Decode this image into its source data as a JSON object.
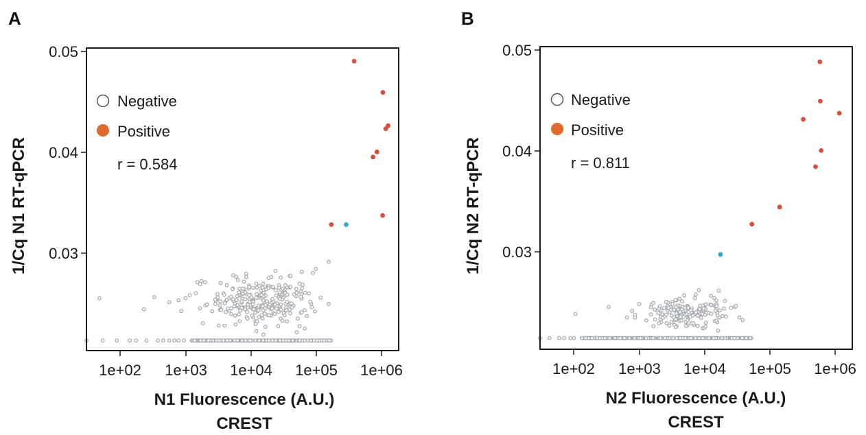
{
  "colors": {
    "negative": "#a6acb1",
    "positive_marker": "#e04a38",
    "legend_positive": "#e06a2a",
    "highlight": "#2aa8e0",
    "axis": "#1a1a1a"
  },
  "legend": {
    "negative_label": "Negative",
    "positive_label": "Positive"
  },
  "chart_data": [
    {
      "type": "scatter",
      "panel_label": "A",
      "xlabel": "N1 Fluorescence (A.U.)",
      "xlabel2": "CREST",
      "ylabel": "1/Cq N1 RT-qPCR",
      "x_scale": "log10",
      "xlim": [
        25,
        2000000
      ],
      "ylim": [
        0.0205,
        0.0505
      ],
      "x_ticks": [
        100,
        1000,
        10000,
        100000,
        1000000
      ],
      "x_tick_labels": [
        "1e+02",
        "1e+03",
        "1e+04",
        "1e+05",
        "1e+06"
      ],
      "y_ticks": [
        0.03,
        0.04,
        0.05
      ],
      "y_tick_labels": [
        "0.03",
        "0.04",
        "0.05"
      ],
      "annotation": "r = 0.584",
      "legend_position": "top-left",
      "series": [
        {
          "name": "Positive",
          "points": [
            [
              400000,
              0.0492
            ],
            [
              1130000,
              0.0461
            ],
            [
              1360000,
              0.0428
            ],
            [
              1250000,
              0.0425
            ],
            [
              910000,
              0.0402
            ],
            [
              790000,
              0.0397
            ],
            [
              1120000,
              0.0339
            ],
            [
              175000,
              0.033
            ]
          ]
        },
        {
          "name": "Highlight",
          "points": [
            [
              300000,
              0.033
            ]
          ]
        },
        {
          "name": "Negative",
          "seed": 11,
          "baseline_y": 0.0215,
          "baseline_count": 230,
          "baseline_log_x": [
            3.05,
            5.25
          ],
          "cluster_count": 260,
          "cluster_log_x_center": 4.15,
          "cluster_log_x_sd": 0.42,
          "cluster_y_center": 0.0254,
          "cluster_y_sd": 0.0011,
          "points": [
            [
              25,
              0.0215
            ],
            [
              45,
              0.0215
            ],
            [
              75,
              0.0215
            ],
            [
              120,
              0.0215
            ],
            [
              150,
              0.0215
            ],
            [
              220,
              0.0215
            ],
            [
              330,
              0.0215
            ],
            [
              400,
              0.0215
            ],
            [
              500,
              0.0215
            ],
            [
              600,
              0.0215
            ],
            [
              700,
              0.0215
            ],
            [
              850,
              0.0215
            ],
            [
              40,
              0.0257
            ],
            [
              200,
              0.0246
            ],
            [
              290,
              0.0258
            ],
            [
              500,
              0.0253
            ],
            [
              700,
              0.0255
            ],
            [
              900,
              0.0257
            ],
            [
              1050,
              0.026
            ],
            [
              1600,
              0.0274
            ],
            [
              3200,
              0.0272
            ],
            [
              4000,
              0.027
            ],
            [
              6000,
              0.0275
            ],
            [
              9000,
              0.0268
            ],
            [
              20000,
              0.0278
            ],
            [
              40000,
              0.0279
            ],
            [
              60000,
              0.0283
            ],
            [
              90000,
              0.0282
            ],
            [
              100000,
              0.0286
            ],
            [
              160000,
              0.0293
            ],
            [
              3000,
              0.023
            ],
            [
              5500,
              0.0231
            ],
            [
              12000,
              0.0234
            ],
            [
              15000,
              0.0221
            ],
            [
              35000,
              0.0234
            ]
          ]
        }
      ]
    },
    {
      "type": "scatter",
      "panel_label": "B",
      "xlabel": "N2 Fluorescence (A.U.)",
      "xlabel2": "CREST",
      "ylabel": "1/Cq N2 RT-qPCR",
      "x_scale": "log10",
      "xlim": [
        25,
        2000000
      ],
      "ylim": [
        0.0204,
        0.0504
      ],
      "x_ticks": [
        100,
        1000,
        10000,
        100000,
        1000000
      ],
      "x_tick_labels": [
        "1e+02",
        "1e+03",
        "1e+04",
        "1e+05",
        "1e+06"
      ],
      "y_ticks": [
        0.03,
        0.04,
        0.05
      ],
      "y_tick_labels": [
        "0.03",
        "0.04",
        "0.05"
      ],
      "annotation": "r = 0.811",
      "legend_position": "top-left",
      "series": [
        {
          "name": "Positive",
          "points": [
            [
              620000,
              0.0489
            ],
            [
              630000,
              0.045
            ],
            [
              1250000,
              0.0438
            ],
            [
              340000,
              0.0432
            ],
            [
              650000,
              0.0401
            ],
            [
              530000,
              0.0385
            ],
            [
              145000,
              0.0345
            ],
            [
              53000,
              0.0328
            ]
          ]
        },
        {
          "name": "Highlight",
          "points": [
            [
              17000,
              0.0298
            ]
          ]
        },
        {
          "name": "Negative",
          "seed": 29,
          "baseline_y": 0.0215,
          "baseline_count": 360,
          "baseline_log_x": [
            2.05,
            4.75
          ],
          "cluster_count": 170,
          "cluster_log_x_center": 3.62,
          "cluster_log_x_sd": 0.32,
          "cluster_y_center": 0.024,
          "cluster_y_sd": 0.0007,
          "points": [
            [
              25,
              0.0215
            ],
            [
              35,
              0.0215
            ],
            [
              50,
              0.0215
            ],
            [
              60,
              0.0215
            ],
            [
              75,
              0.0215
            ],
            [
              85,
              0.0215
            ],
            [
              90,
              0.0239
            ],
            [
              300,
              0.0246
            ],
            [
              700,
              0.0242
            ],
            [
              900,
              0.0249
            ],
            [
              12000,
              0.0257
            ],
            [
              16000,
              0.0262
            ],
            [
              20000,
              0.0252
            ],
            [
              25000,
              0.0245
            ],
            [
              30000,
              0.0247
            ],
            [
              38000,
              0.0233
            ],
            [
              52000,
              0.0215
            ],
            [
              50000,
              0.0215
            ]
          ]
        }
      ]
    }
  ]
}
